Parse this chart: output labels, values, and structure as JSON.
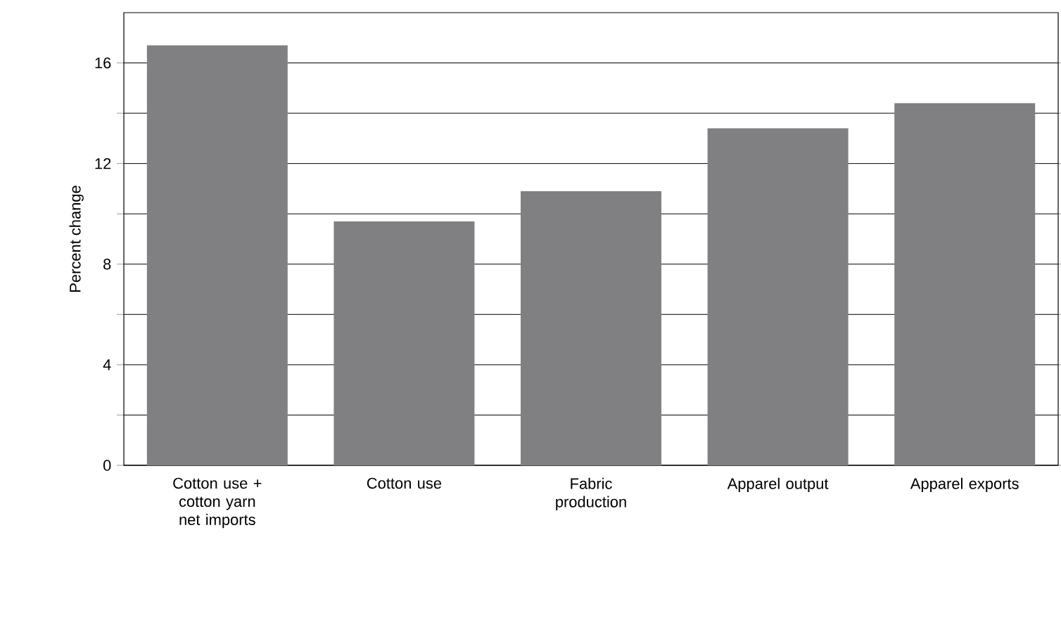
{
  "chart_data": {
    "type": "bar",
    "ylabel": "Percent change",
    "categories": [
      "Cotton use + cotton yarn net imports",
      "Cotton use",
      "Fabric production",
      "Apparel output",
      "Apparel exports"
    ],
    "values": [
      16.7,
      9.7,
      10.9,
      13.4,
      14.4
    ],
    "color": "#808083",
    "ylim": [
      0,
      18
    ],
    "yticks": [
      0,
      {
        "value": 2,
        "label": null
      },
      4,
      {
        "value": 6,
        "label": null
      },
      8,
      {
        "value": 10,
        "label": null
      },
      12,
      {
        "value": 14,
        "label": null
      },
      16
    ],
    "grid": "y"
  }
}
